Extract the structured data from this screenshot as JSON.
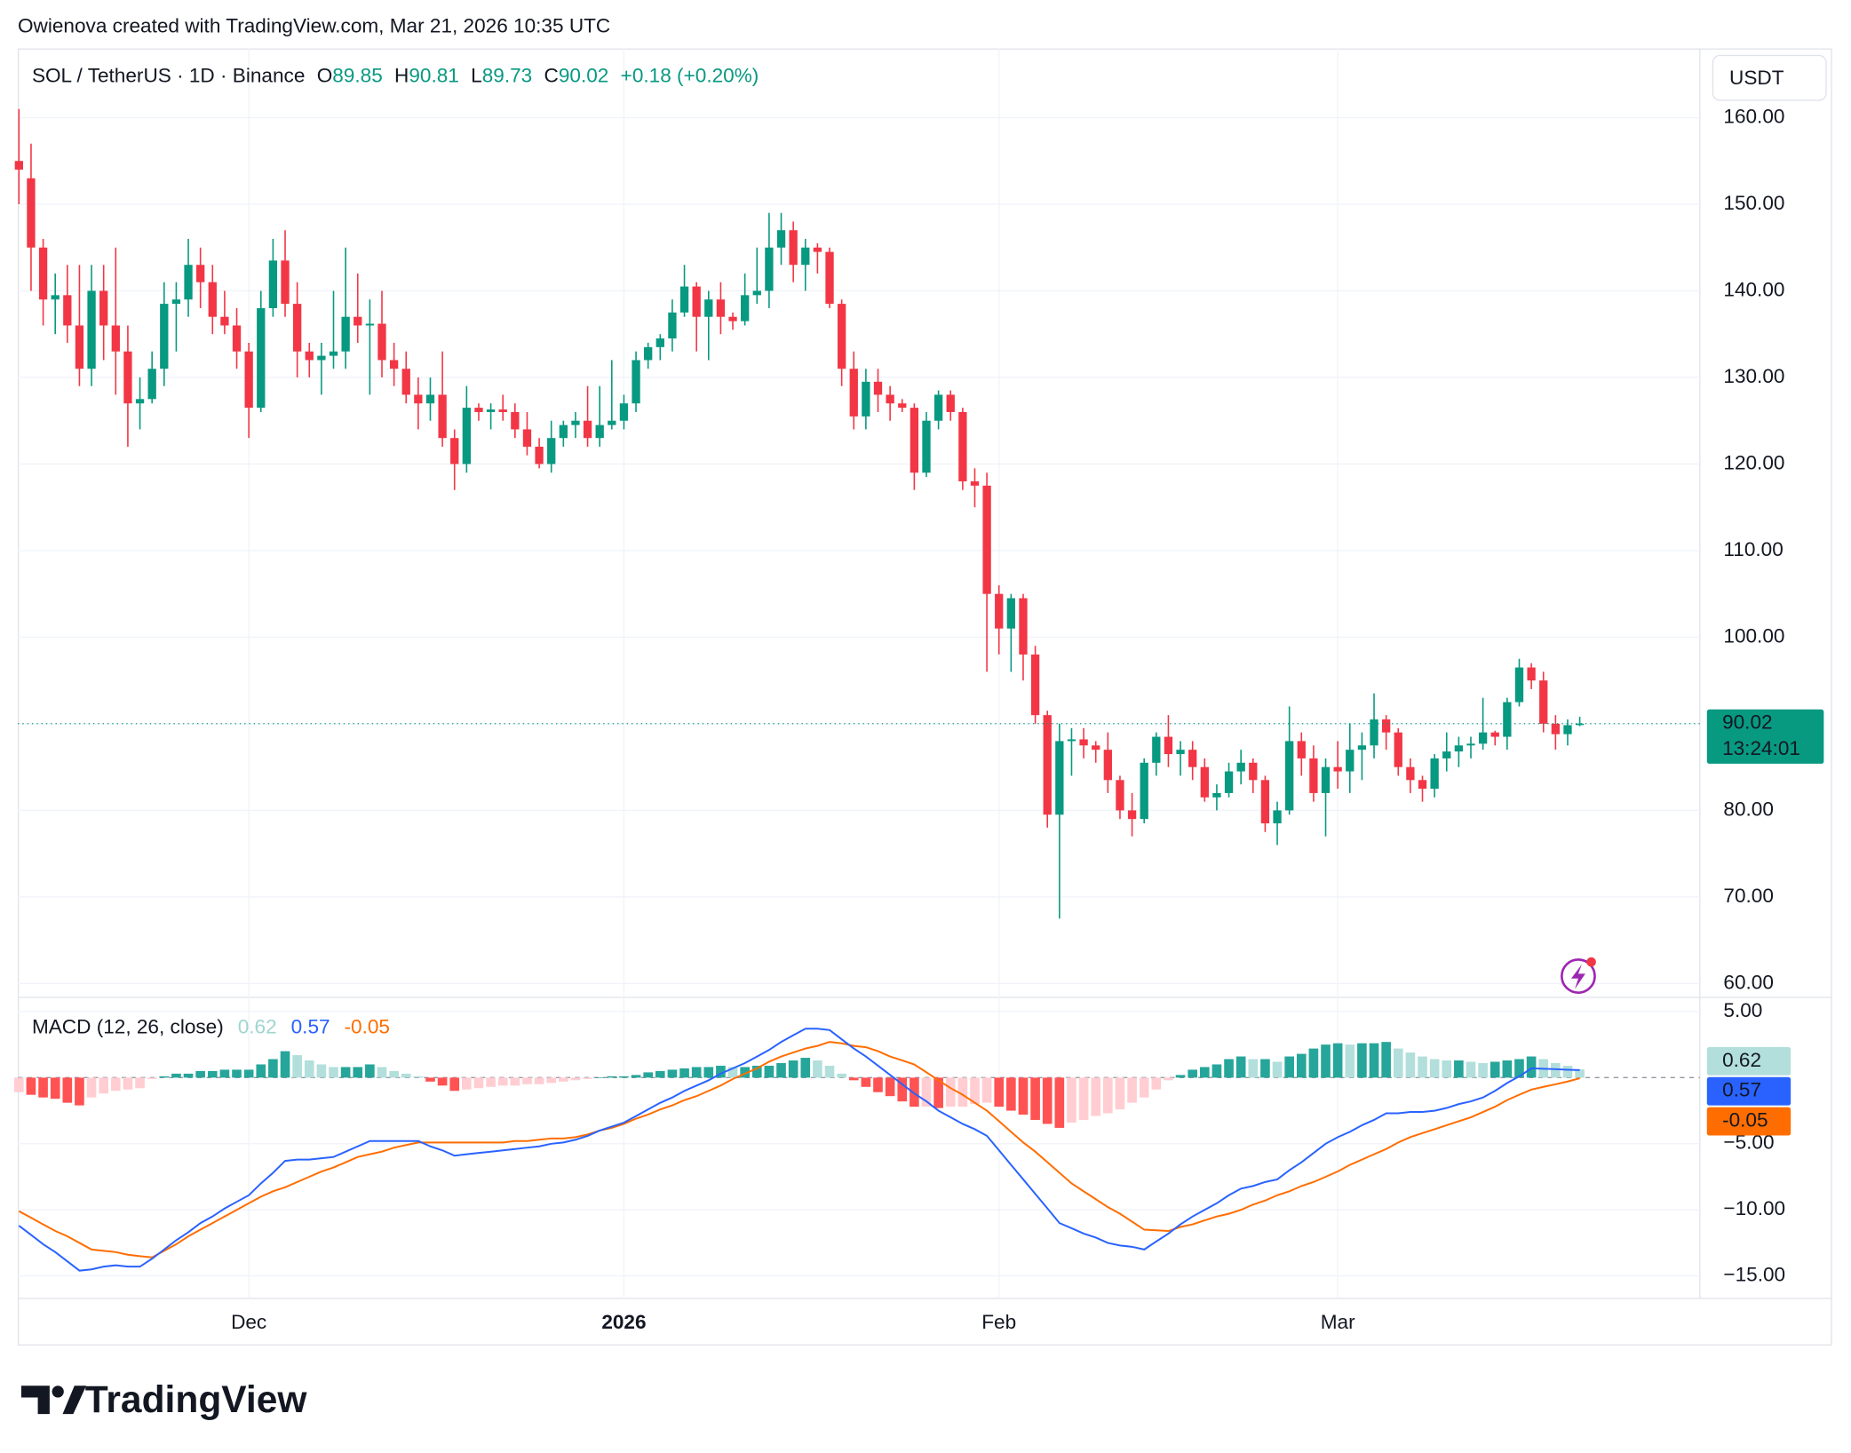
{
  "watermark": "Owienova created with TradingView.com, Mar 21, 2026 10:35 UTC",
  "logo": "TradingView",
  "chart_data": [
    {
      "type": "candlestick",
      "title": "SOL / TetherUS · 1D · Binance",
      "ohlc_labels": [
        "O",
        "H",
        "L",
        "C"
      ],
      "change": "+0.18 (+0.20%)",
      "currency": "USDT",
      "countdown": "13:24:01",
      "up_color": "#089981",
      "down_color": "#f23645",
      "grid": true,
      "categories": [
        null,
        null,
        null,
        null,
        null,
        null,
        null,
        null,
        null,
        null,
        null,
        null,
        null,
        null,
        null,
        null,
        null,
        null,
        null,
        "Dec",
        null,
        null,
        null,
        null,
        null,
        null,
        null,
        null,
        null,
        null,
        null,
        null,
        null,
        null,
        null,
        null,
        null,
        null,
        null,
        null,
        null,
        null,
        null,
        null,
        null,
        null,
        null,
        null,
        null,
        null,
        "2026",
        null,
        null,
        null,
        null,
        null,
        null,
        null,
        null,
        null,
        null,
        null,
        null,
        null,
        null,
        null,
        null,
        null,
        null,
        null,
        null,
        null,
        null,
        null,
        null,
        null,
        null,
        null,
        null,
        null,
        null,
        "Feb",
        null,
        null,
        null,
        null,
        null,
        null,
        null,
        null,
        null,
        null,
        null,
        null,
        null,
        null,
        null,
        null,
        null,
        null,
        null,
        null,
        null,
        null,
        null,
        null,
        null,
        null,
        null,
        "Mar",
        null,
        null,
        null,
        null,
        null,
        null,
        null,
        null,
        null,
        null,
        null,
        null,
        null,
        null,
        null,
        null,
        null,
        null,
        null,
        null
      ],
      "open": [
        155,
        153,
        145,
        139,
        139.5,
        136,
        131,
        140,
        136,
        133,
        127,
        127.5,
        131,
        138.5,
        139,
        143,
        141,
        137,
        136,
        133,
        126.5,
        138,
        143.5,
        138.5,
        133,
        132,
        132.5,
        133,
        137,
        136,
        136.2,
        132,
        131,
        128,
        127,
        128,
        123,
        120,
        126.5,
        126,
        126.3,
        126,
        124,
        122,
        120,
        123,
        124.5,
        125,
        123,
        124.5,
        125,
        127,
        132,
        133.5,
        134.5,
        137.5,
        140.5,
        137,
        139,
        137,
        136.5,
        139.5,
        140,
        145,
        147,
        143,
        145,
        144.5,
        138.5,
        131,
        125.5,
        129.5,
        128,
        127,
        126.5,
        119,
        125,
        128,
        126,
        118,
        117.5,
        105,
        101,
        104.5,
        98,
        91,
        79.5,
        88,
        88.2,
        87.5,
        87,
        83.5,
        80,
        79,
        85.5,
        88.5,
        86.5,
        87,
        85,
        81.5,
        82,
        84.5,
        85.5,
        83.5,
        78.5,
        80,
        88,
        86,
        82,
        85,
        84.5,
        87,
        87.5,
        90.5,
        89,
        85,
        83.5,
        82.5,
        86,
        86.8,
        87.5,
        87.7,
        89,
        88.5,
        92.5,
        96.5,
        95,
        90,
        88.8,
        89.85
      ],
      "high": [
        161,
        157,
        146,
        142,
        143,
        143,
        143,
        143,
        145,
        136,
        130,
        133,
        141,
        141,
        146,
        145,
        143,
        140,
        138,
        134,
        140,
        146,
        147,
        141,
        134,
        134,
        140,
        145,
        142,
        139,
        140,
        134,
        133,
        130,
        130,
        133,
        124,
        129,
        127,
        127,
        128,
        127,
        126,
        123,
        125,
        125,
        126,
        129,
        129,
        132,
        128,
        133,
        134,
        135,
        139,
        143,
        141,
        140,
        141,
        137.5,
        142,
        145,
        149,
        149,
        148,
        146,
        145.5,
        145,
        139,
        133,
        131,
        131,
        129,
        127.5,
        127,
        126,
        128.5,
        128.5,
        126.5,
        119.5,
        119,
        106,
        105,
        105,
        99,
        91.5,
        90,
        89.5,
        89.5,
        88,
        89,
        84,
        82,
        86,
        89,
        91,
        88,
        88,
        86,
        83,
        85.5,
        87,
        86,
        84,
        81,
        92,
        89,
        87.5,
        86,
        88,
        90,
        89,
        93.5,
        91,
        89.5,
        86,
        84,
        86.5,
        89,
        88.5,
        88.5,
        93,
        89.2,
        93,
        97.5,
        97,
        96,
        91,
        90.5,
        90.81
      ],
      "low": [
        150,
        140,
        136,
        135,
        134,
        129,
        129,
        132,
        128,
        122,
        124,
        127,
        129,
        133,
        137,
        138,
        135,
        135,
        131,
        123,
        126,
        137,
        137,
        130,
        130,
        128,
        131,
        131,
        134,
        128,
        130,
        129,
        127,
        124,
        125,
        122,
        117,
        119,
        125,
        124,
        125,
        123,
        121,
        119.5,
        119,
        122,
        123,
        122,
        122,
        124,
        124,
        126,
        131,
        132,
        133,
        137,
        133,
        132,
        135,
        135.5,
        136,
        138.5,
        138,
        143,
        141,
        140,
        142,
        138,
        129,
        124,
        124,
        126,
        125,
        126,
        117,
        118.5,
        124,
        125,
        117,
        115,
        96,
        98,
        96,
        95,
        90,
        78,
        67.5,
        84,
        86,
        85.5,
        82,
        79,
        77,
        78.5,
        84,
        85,
        84,
        83.5,
        81,
        80,
        81.5,
        83,
        82,
        77.5,
        76,
        79.5,
        84,
        81,
        77,
        82.5,
        82,
        83.5,
        86,
        87,
        84,
        82,
        81,
        81.5,
        84.5,
        85,
        86,
        87,
        87.5,
        87,
        92,
        94,
        89,
        87,
        87.5,
        89.73
      ],
      "close": [
        154,
        145,
        139,
        139.5,
        136,
        131,
        140,
        136,
        133,
        127,
        127.5,
        131,
        138.5,
        139,
        143,
        141,
        137,
        136,
        133,
        126.5,
        138,
        143.5,
        138.5,
        133,
        132,
        132.5,
        133,
        137,
        136,
        136.2,
        132,
        131,
        128,
        127,
        128,
        123,
        120,
        126.5,
        126,
        126.3,
        126,
        124,
        122,
        120,
        123,
        124.5,
        125,
        123,
        124.5,
        125,
        127,
        132,
        133.5,
        134.5,
        137.5,
        140.5,
        137,
        139,
        137,
        136.5,
        139.5,
        140,
        145,
        147,
        143,
        145,
        144.5,
        138.5,
        131,
        125.5,
        129.5,
        128,
        127,
        126.5,
        119,
        125,
        128,
        126,
        118,
        117.5,
        105,
        101,
        104.5,
        98,
        91,
        79.5,
        88,
        88.2,
        87.5,
        87,
        83.5,
        80,
        79,
        85.5,
        88.5,
        86.5,
        87,
        85,
        81.5,
        82,
        84.5,
        85.5,
        83.5,
        78.5,
        80,
        88,
        86,
        82,
        85,
        84.5,
        87,
        87.5,
        90.5,
        89,
        85,
        83.5,
        82.5,
        86,
        86.8,
        87.5,
        87.7,
        89,
        88.5,
        92.5,
        96.5,
        95,
        90,
        88.8,
        89.84,
        90.02
      ],
      "ylim": [
        58.4,
        168
      ],
      "yticks": [
        {
          "value": 60,
          "label": "60.00"
        },
        {
          "value": 70,
          "label": "70.00"
        },
        {
          "value": 80,
          "label": "80.00"
        },
        {
          "value": 90,
          "label": "90.00"
        },
        {
          "value": 100,
          "label": "100.00"
        },
        {
          "value": 110,
          "label": "110.00"
        },
        {
          "value": 120,
          "label": "120.00"
        },
        {
          "value": 130,
          "label": "130.00"
        },
        {
          "value": 140,
          "label": "140.00"
        },
        {
          "value": 150,
          "label": "150.00"
        },
        {
          "value": 160,
          "label": "160.00"
        }
      ]
    },
    {
      "type": "macd",
      "title": "MACD (12, 26, close)",
      "histogram": {
        "colors": [
          "#26a69a",
          "#b2dfdb",
          "#ff5252",
          "#ffcdd2"
        ],
        "values": [
          -1.1,
          -1.3,
          -1.5,
          -1.6,
          -1.9,
          -2.1,
          -1.5,
          -1.2,
          -1,
          -0.9,
          -0.8,
          -0.1,
          0.1,
          0.3,
          0.3,
          0.5,
          0.5,
          0.6,
          0.6,
          0.6,
          1,
          1.4,
          2,
          1.7,
          1.3,
          1,
          0.8,
          0.8,
          0.8,
          1,
          0.8,
          0.5,
          0.3,
          0.1,
          -0.3,
          -0.6,
          -1,
          -0.9,
          -0.8,
          -0.7,
          -0.6,
          -0.6,
          -0.5,
          -0.5,
          -0.4,
          -0.3,
          -0.2,
          -0.1,
          0,
          0.1,
          0.1,
          0.2,
          0.4,
          0.5,
          0.6,
          0.7,
          0.8,
          0.8,
          0.9,
          0.8,
          0.8,
          0.9,
          0.9,
          1.1,
          1.3,
          1.5,
          1.3,
          0.9,
          0.3,
          -0.2,
          -0.7,
          -1.1,
          -1.4,
          -1.8,
          -2.2,
          -2.2,
          -2.3,
          -2.2,
          -2.2,
          -2,
          -1.9,
          -2.2,
          -2.5,
          -2.8,
          -3.2,
          -3.5,
          -3.8,
          -3.4,
          -3.2,
          -2.9,
          -2.7,
          -2.4,
          -1.9,
          -1.5,
          -0.9,
          -0.2,
          0.2,
          0.6,
          0.8,
          1,
          1.4,
          1.6,
          1.4,
          1.4,
          1.2,
          1.6,
          1.8,
          2.2,
          2.5,
          2.6,
          2.5,
          2.6,
          2.6,
          2.7,
          2.2,
          1.9,
          1.6,
          1.4,
          1.3,
          1.3,
          1.2,
          1.1,
          1.2,
          1.3,
          1.4,
          1.6,
          1.4,
          1.1,
          0.9,
          0.62
        ]
      },
      "macd": {
        "color": "#2962ff",
        "values": [
          -11.2,
          -11.9,
          -12.6,
          -13.2,
          -13.9,
          -14.6,
          -14.5,
          -14.3,
          -14.2,
          -14.3,
          -14.3,
          -13.7,
          -13,
          -12.3,
          -11.7,
          -11,
          -10.5,
          -9.9,
          -9.4,
          -8.9,
          -8,
          -7.2,
          -6.3,
          -6.2,
          -6.2,
          -6.1,
          -6,
          -5.6,
          -5.2,
          -4.8,
          -4.8,
          -4.8,
          -4.8,
          -4.8,
          -5.2,
          -5.5,
          -5.9,
          -5.8,
          -5.7,
          -5.6,
          -5.5,
          -5.4,
          -5.3,
          -5.2,
          -5,
          -4.9,
          -4.7,
          -4.4,
          -4,
          -3.7,
          -3.4,
          -2.9,
          -2.4,
          -1.9,
          -1.5,
          -1,
          -0.6,
          -0.2,
          0.3,
          0.7,
          1.1,
          1.6,
          2.1,
          2.7,
          3.2,
          3.7,
          3.7,
          3.6,
          2.9,
          2.2,
          1.6,
          0.9,
          0.2,
          -0.5,
          -1.2,
          -1.8,
          -2.5,
          -3,
          -3.5,
          -3.9,
          -4.4,
          -5.5,
          -6.6,
          -7.7,
          -8.8,
          -9.9,
          -11,
          -11.4,
          -11.8,
          -12.1,
          -12.5,
          -12.7,
          -12.8,
          -13,
          -12.4,
          -11.8,
          -11.1,
          -10.5,
          -10,
          -9.5,
          -8.9,
          -8.4,
          -8.2,
          -7.9,
          -7.7,
          -7,
          -6.4,
          -5.7,
          -5,
          -4.5,
          -4.1,
          -3.6,
          -3.2,
          -2.7,
          -2.7,
          -2.6,
          -2.6,
          -2.5,
          -2.3,
          -2,
          -1.8,
          -1.5,
          -1,
          -0.4,
          0.1,
          0.7,
          0.67,
          0.64,
          0.6,
          0.57
        ]
      },
      "signal": {
        "color": "#ff6d00",
        "values": [
          -10.1,
          -10.6,
          -11.1,
          -11.6,
          -12,
          -12.5,
          -13,
          -13.1,
          -13.2,
          -13.4,
          -13.5,
          -13.6,
          -13.1,
          -12.6,
          -12,
          -11.5,
          -11,
          -10.5,
          -10,
          -9.5,
          -9,
          -8.6,
          -8.3,
          -7.9,
          -7.5,
          -7.1,
          -6.8,
          -6.4,
          -6,
          -5.8,
          -5.6,
          -5.3,
          -5.1,
          -4.9,
          -4.9,
          -4.9,
          -4.9,
          -4.9,
          -4.9,
          -4.9,
          -4.9,
          -4.8,
          -4.8,
          -4.7,
          -4.6,
          -4.6,
          -4.5,
          -4.3,
          -4,
          -3.8,
          -3.5,
          -3.1,
          -2.8,
          -2.4,
          -2.1,
          -1.7,
          -1.4,
          -1,
          -0.6,
          -0.1,
          0.3,
          0.7,
          1.2,
          1.6,
          1.9,
          2.2,
          2.4,
          2.7,
          2.6,
          2.4,
          2.3,
          2,
          1.6,
          1.3,
          1,
          0.4,
          -0.2,
          -0.8,
          -1.3,
          -1.9,
          -2.5,
          -3.3,
          -4.1,
          -4.9,
          -5.6,
          -6.4,
          -7.2,
          -8,
          -8.6,
          -9.2,
          -9.8,
          -10.3,
          -10.9,
          -11.5,
          -11.55,
          -11.6,
          -11.3,
          -11.1,
          -10.8,
          -10.5,
          -10.3,
          -10,
          -9.6,
          -9.3,
          -8.9,
          -8.6,
          -8.2,
          -7.9,
          -7.5,
          -7.1,
          -6.6,
          -6.2,
          -5.8,
          -5.4,
          -4.9,
          -4.5,
          -4.2,
          -3.9,
          -3.6,
          -3.3,
          -3,
          -2.6,
          -2.2,
          -1.7,
          -1.3,
          -0.9,
          -0.7,
          -0.5,
          -0.3,
          -0.05
        ]
      },
      "ylim": [
        -16.7,
        6.07
      ],
      "yticks": [
        {
          "value": 5,
          "label": "5.00"
        },
        {
          "value": -5,
          "label": "−5.00"
        },
        {
          "value": -10,
          "label": "−10.00"
        },
        {
          "value": -15,
          "label": "−15.00"
        }
      ]
    }
  ]
}
